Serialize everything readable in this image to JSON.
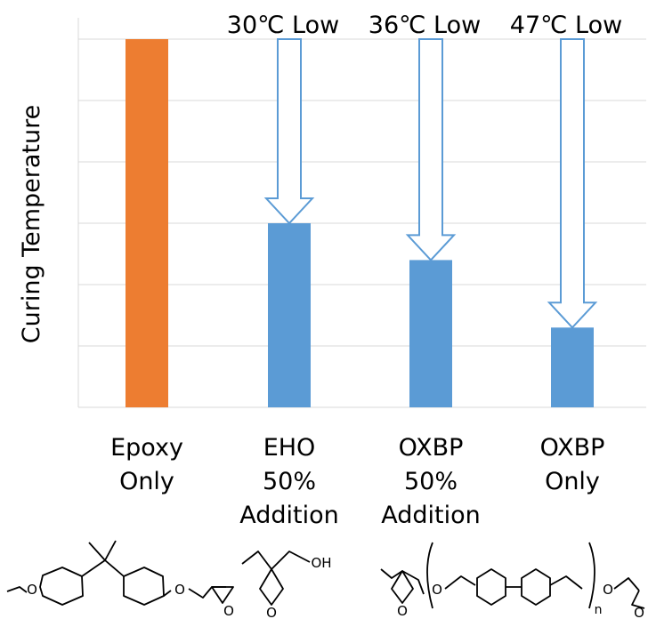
{
  "chart_data": {
    "type": "bar",
    "ylabel": "Curing Temperature",
    "categories": [
      [
        "Epoxy",
        "Only"
      ],
      [
        "EHO",
        "50%",
        "Addition"
      ],
      [
        "OXBP",
        "50%",
        "Addition"
      ],
      [
        "OXBP",
        "Only"
      ]
    ],
    "values": [
      6.0,
      3.0,
      2.4,
      1.3
    ],
    "ylim": [
      0,
      6.0
    ],
    "grid": true,
    "bar_colors": [
      "#ED7D31",
      "#5B9BD5",
      "#5B9BD5",
      "#5B9BD5"
    ],
    "annotations": [
      {
        "category_index": 1,
        "text": "30℃ Low"
      },
      {
        "category_index": 2,
        "text": "36℃ Low"
      },
      {
        "category_index": 3,
        "text": "47℃ Low"
      }
    ],
    "arrow_color": "#5B9BD5",
    "grid_color": "#D9D9D9",
    "structure_labels": {
      "hydroxyl": "OH",
      "oxygen": "O",
      "repeat_unit": "n"
    }
  }
}
